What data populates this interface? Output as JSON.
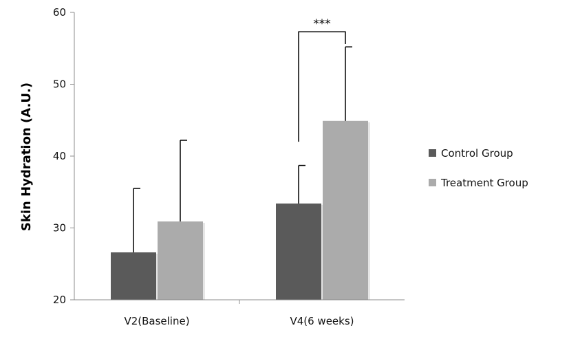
{
  "chart_data": {
    "type": "bar",
    "title": "",
    "xlabel": "",
    "ylabel": "Skin Hydration (A.U.)",
    "ylim": [
      20,
      60
    ],
    "yticks": [
      20,
      30,
      40,
      50,
      60
    ],
    "categories": [
      "V2(Baseline)",
      "V4(6 weeks)"
    ],
    "series": [
      {
        "name": "Control Group",
        "color": "#5a5a5a",
        "values": [
          26.6,
          33.4
        ],
        "error_plus": [
          8.9,
          5.3
        ]
      },
      {
        "name": "Treatment Group",
        "color": "#ababab",
        "values": [
          30.9,
          44.9
        ],
        "error_plus": [
          11.3,
          10.3
        ]
      }
    ],
    "grid": false,
    "legend_position": "right",
    "annotations": [
      {
        "text": "***",
        "type": "significance-bracket",
        "category": "V4(6 weeks)"
      }
    ]
  }
}
